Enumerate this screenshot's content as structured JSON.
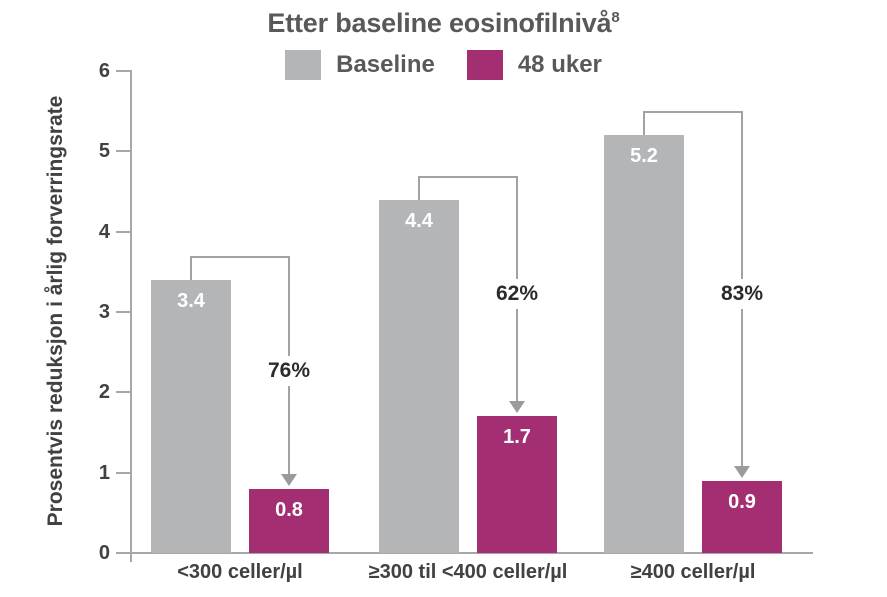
{
  "title": {
    "text": "Etter baseline eosinofilnivå",
    "superscript": "8"
  },
  "legend": [
    {
      "label": "Baseline",
      "color": "#b4b5b7"
    },
    {
      "label": "48 uker",
      "color": "#a32e72"
    }
  ],
  "y_axis": {
    "label": "Prosentvis reduksjon i årlig forverringsrate"
  },
  "chart_data": {
    "type": "bar",
    "title": "Etter baseline eosinofilnivå⁸",
    "categories": [
      "<300 celler/µl",
      "≥300 til <400 celler/µl",
      "≥400 celler/µl"
    ],
    "series": [
      {
        "name": "Baseline",
        "color": "#b4b5b7",
        "values": [
          3.4,
          4.4,
          5.2
        ]
      },
      {
        "name": "48 uker",
        "color": "#a32e72",
        "values": [
          0.8,
          1.7,
          0.9
        ]
      }
    ],
    "reduction_labels": [
      "76%",
      "62%",
      "83%"
    ],
    "xlabel": "",
    "ylabel": "Prosentvis reduksjon i årlig forverringsrate",
    "ylim": [
      0,
      6
    ],
    "yticks": [
      0,
      1,
      2,
      3,
      4,
      5,
      6
    ],
    "grid": false,
    "legend_position": "top",
    "annotation_style": "bracket-arrow-from-baseline-to-48uker"
  },
  "colors": {
    "title_text": "#58595b",
    "axis_text": "#414042",
    "axis_line": "#a7a7a9",
    "arrow_line": "#a2a2a4",
    "pct_text": "#2b2b2b",
    "bar_baseline": "#b4b5b7",
    "bar_48uker": "#a32e72",
    "background": "#ffffff"
  }
}
